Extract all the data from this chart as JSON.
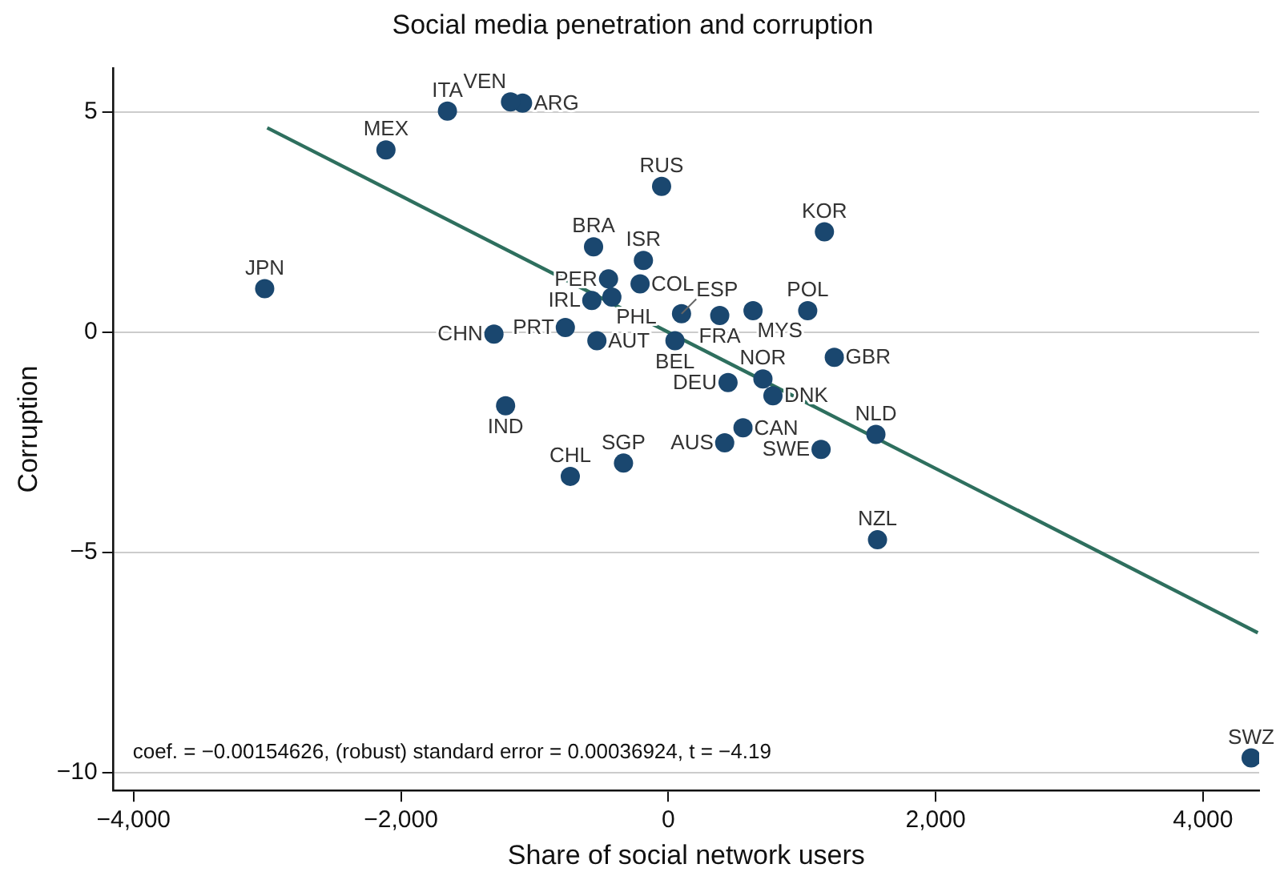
{
  "chart_data": {
    "type": "scatter",
    "title": "Social media penetration and corruption",
    "xlabel": "Share of social network users",
    "ylabel": "Corruption",
    "xlim": [
      -4150,
      4420
    ],
    "ylim": [
      -10.4,
      6
    ],
    "xticks": [
      {
        "value": -4000,
        "label": "−4,000"
      },
      {
        "value": -2000,
        "label": "−2,000"
      },
      0,
      {
        "value": 2000,
        "label": "2,000"
      },
      {
        "value": 4000,
        "label": "4,000"
      }
    ],
    "yticks": [
      {
        "value": -10,
        "label": "−10"
      },
      {
        "value": -5,
        "label": "−5"
      },
      0,
      5
    ],
    "grid": "y",
    "legend": false,
    "marker": "circle",
    "annotations": [
      "coef. = −0.00154626, (robust) standard error = 0.00036924, t = −4.19"
    ],
    "series": [
      {
        "name": "JPN",
        "color": "#1a476f",
        "x": [
          -3019
        ],
        "values": [
          0.99
        ]
      },
      {
        "name": "MEX",
        "color": "#1a476f",
        "x": [
          -2112
        ],
        "values": [
          4.14
        ]
      },
      {
        "name": "ITA",
        "color": "#1a476f",
        "x": [
          -1652
        ],
        "values": [
          5.02
        ]
      },
      {
        "name": "VEN",
        "color": "#1a476f",
        "x": [
          -1180
        ],
        "values": [
          5.23
        ]
      },
      {
        "name": "ARG",
        "color": "#1a476f",
        "x": [
          -1090
        ],
        "values": [
          5.2
        ]
      },
      {
        "name": "RUS",
        "color": "#1a476f",
        "x": [
          -50
        ],
        "values": [
          3.31
        ]
      },
      {
        "name": "KOR",
        "color": "#1a476f",
        "x": [
          1168
        ],
        "values": [
          2.28
        ]
      },
      {
        "name": "BRA",
        "color": "#1a476f",
        "x": [
          -559
        ],
        "values": [
          1.94
        ]
      },
      {
        "name": "ISR",
        "color": "#1a476f",
        "x": [
          -186
        ],
        "values": [
          1.63
        ]
      },
      {
        "name": "PER",
        "color": "#1a476f",
        "x": [
          -447
        ],
        "values": [
          1.21
        ]
      },
      {
        "name": "COL",
        "color": "#1a476f",
        "x": [
          -211
        ],
        "values": [
          1.1
        ]
      },
      {
        "name": "IRL",
        "color": "#1a476f",
        "x": [
          -572
        ],
        "values": [
          0.72
        ]
      },
      {
        "name": "PHL",
        "color": "#1a476f",
        "x": [
          -422
        ],
        "values": [
          0.8
        ]
      },
      {
        "name": "PRT",
        "color": "#1a476f",
        "x": [
          -770
        ],
        "values": [
          0.11
        ]
      },
      {
        "name": "AUT",
        "color": "#1a476f",
        "x": [
          -534
        ],
        "values": [
          -0.19
        ]
      },
      {
        "name": "CHN",
        "color": "#1a476f",
        "x": [
          -1304
        ],
        "values": [
          -0.04
        ]
      },
      {
        "name": "ESP",
        "color": "#1a476f",
        "x": [
          99
        ],
        "values": [
          0.42
        ]
      },
      {
        "name": "FRA",
        "color": "#1a476f",
        "x": [
          385
        ],
        "values": [
          0.38
        ]
      },
      {
        "name": "MYS",
        "color": "#1a476f",
        "x": [
          634
        ],
        "values": [
          0.49
        ]
      },
      {
        "name": "POL",
        "color": "#1a476f",
        "x": [
          1043
        ],
        "values": [
          0.49
        ]
      },
      {
        "name": "BEL",
        "color": "#1a476f",
        "x": [
          50
        ],
        "values": [
          -0.19
        ]
      },
      {
        "name": "GBR",
        "color": "#1a476f",
        "x": [
          1242
        ],
        "values": [
          -0.57
        ]
      },
      {
        "name": "DEU",
        "color": "#1a476f",
        "x": [
          447
        ],
        "values": [
          -1.14
        ]
      },
      {
        "name": "NOR",
        "color": "#1a476f",
        "x": [
          708
        ],
        "values": [
          -1.06
        ]
      },
      {
        "name": "DNK",
        "color": "#1a476f",
        "x": [
          783
        ],
        "values": [
          -1.44
        ]
      },
      {
        "name": "CAN",
        "color": "#1a476f",
        "x": [
          559
        ],
        "values": [
          -2.17
        ]
      },
      {
        "name": "AUS",
        "color": "#1a476f",
        "x": [
          422
        ],
        "values": [
          -2.51
        ]
      },
      {
        "name": "SWE",
        "color": "#1a476f",
        "x": [
          1143
        ],
        "values": [
          -2.66
        ]
      },
      {
        "name": "NLD",
        "color": "#1a476f",
        "x": [
          1553
        ],
        "values": [
          -2.32
        ]
      },
      {
        "name": "NZL",
        "color": "#1a476f",
        "x": [
          1565
        ],
        "values": [
          -4.71
        ]
      },
      {
        "name": "IND",
        "color": "#1a476f",
        "x": [
          -1217
        ],
        "values": [
          -1.67
        ]
      },
      {
        "name": "CHL",
        "color": "#1a476f",
        "x": [
          -733
        ],
        "values": [
          -3.27
        ]
      },
      {
        "name": "SGP",
        "color": "#1a476f",
        "x": [
          -335
        ],
        "values": [
          -2.97
        ]
      },
      {
        "name": "SWZ",
        "color": "#1a476f",
        "x": [
          4360
        ],
        "values": [
          -9.66
        ]
      },
      {
        "type": "line",
        "color": "#2e6f5e",
        "marker": "none",
        "line_style": "solid",
        "x": [
          -3000,
          4410
        ],
        "values": [
          4.64,
          -6.82
        ]
      }
    ]
  }
}
